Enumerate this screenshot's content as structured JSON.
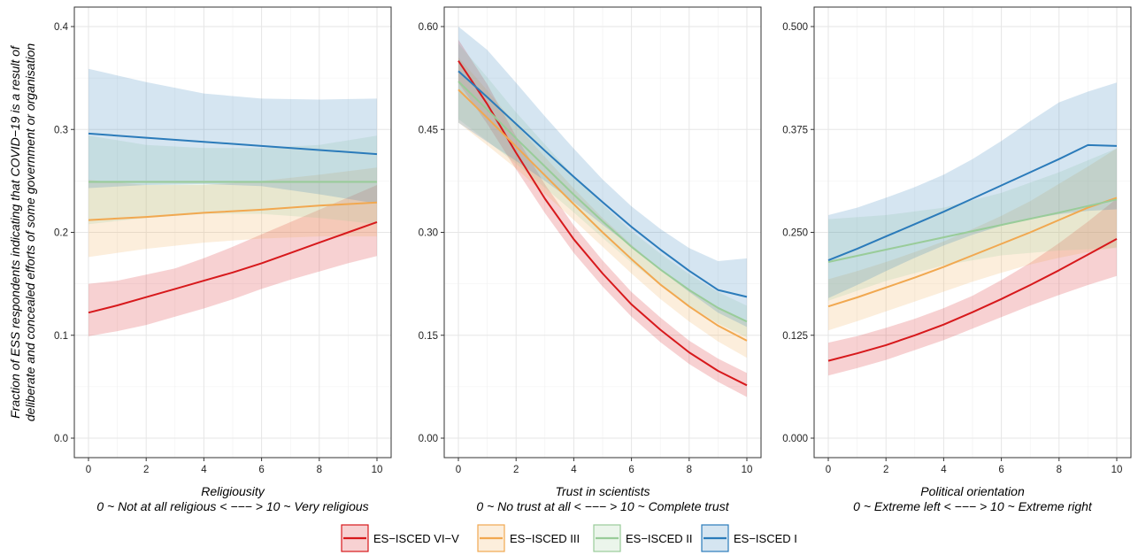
{
  "chart_data": {
    "type": "line",
    "ylabel": [
      "Fraction of ESS respondents indicating that COVID−19 is a result of",
      "deliberate and concealed efforts of some government or organisation"
    ],
    "legend": {
      "placement": "bottom"
    },
    "series_styles": [
      {
        "name": "ES−ISCED VI−V",
        "color": "#d7191c"
      },
      {
        "name": "ES−ISCED III",
        "color": "#f1a850"
      },
      {
        "name": "ES−ISCED II",
        "color": "#99cc99"
      },
      {
        "name": "ES−ISCED I",
        "color": "#2b7bba"
      }
    ],
    "panels": [
      {
        "xlabel": [
          "Religiousity",
          "0 ~ Not at all religious < −−− > 10 ~ Very religious"
        ],
        "xlim": [
          0,
          10
        ],
        "xticks": [
          0,
          2,
          4,
          6,
          8,
          10
        ],
        "ylim": [
          0,
          0.4
        ],
        "yticks": [
          0.0,
          0.1,
          0.2,
          0.3,
          0.4
        ],
        "ytick_labels": [
          "0.0",
          "0.1",
          "0.2",
          "0.3",
          "0.4"
        ],
        "series": [
          {
            "name": "ES−ISCED VI−V",
            "x": [
              0,
              1,
              2,
              3,
              4,
              5,
              6,
              7,
              8,
              9,
              10
            ],
            "y": [
              0.122,
              0.129,
              0.137,
              0.145,
              0.153,
              0.161,
              0.17,
              0.18,
              0.19,
              0.2,
              0.21
            ],
            "lower": [
              0.099,
              0.104,
              0.11,
              0.118,
              0.126,
              0.135,
              0.145,
              0.154,
              0.162,
              0.17,
              0.177
            ],
            "upper": [
              0.15,
              0.153,
              0.159,
              0.165,
              0.175,
              0.186,
              0.198,
              0.21,
              0.222,
              0.234,
              0.246
            ]
          },
          {
            "name": "ES−ISCED III",
            "x": [
              0,
              2,
              4,
              6,
              8,
              10
            ],
            "y": [
              0.212,
              0.215,
              0.219,
              0.222,
              0.226,
              0.229
            ],
            "lower": [
              0.176,
              0.184,
              0.19,
              0.194,
              0.196,
              0.196
            ],
            "upper": [
              0.251,
              0.246,
              0.246,
              0.25,
              0.256,
              0.263
            ]
          },
          {
            "name": "ES−ISCED II",
            "x": [
              0,
              2,
              4,
              6,
              8,
              10
            ],
            "y": [
              0.249,
              0.249,
              0.249,
              0.249,
              0.249,
              0.249
            ],
            "lower": [
              0.208,
              0.214,
              0.218,
              0.218,
              0.214,
              0.208
            ],
            "upper": [
              0.294,
              0.285,
              0.282,
              0.282,
              0.285,
              0.294
            ]
          },
          {
            "name": "ES−ISCED I",
            "x": [
              0,
              2,
              4,
              6,
              8,
              10
            ],
            "y": [
              0.296,
              0.292,
              0.288,
              0.284,
              0.28,
              0.276
            ],
            "lower": [
              0.243,
              0.246,
              0.247,
              0.245,
              0.237,
              0.228
            ],
            "upper": [
              0.359,
              0.346,
              0.335,
              0.33,
              0.329,
              0.33
            ]
          }
        ]
      },
      {
        "xlabel": [
          "Trust in scientists",
          "0 ~ No trust at all < −−− > 10 ~ Complete trust"
        ],
        "xlim": [
          0,
          10
        ],
        "xticks": [
          0,
          2,
          4,
          6,
          8,
          10
        ],
        "ylim": [
          0,
          0.6
        ],
        "yticks": [
          0.0,
          0.15,
          0.3,
          0.45,
          0.6
        ],
        "ytick_labels": [
          "0.00",
          "0.15",
          "0.30",
          "0.45",
          "0.60"
        ],
        "series": [
          {
            "name": "ES−ISCED VI−V",
            "x": [
              0,
              1,
              2,
              3,
              4,
              5,
              6,
              7,
              8,
              9,
              10
            ],
            "y": [
              0.55,
              0.487,
              0.416,
              0.349,
              0.29,
              0.24,
              0.195,
              0.158,
              0.125,
              0.098,
              0.077
            ],
            "lower": [
              0.518,
              0.458,
              0.392,
              0.328,
              0.27,
              0.221,
              0.177,
              0.14,
              0.108,
              0.082,
              0.06
            ],
            "upper": [
              0.581,
              0.516,
              0.44,
              0.37,
              0.31,
              0.259,
              0.213,
              0.176,
              0.142,
              0.116,
              0.095
            ]
          },
          {
            "name": "ES−ISCED III",
            "x": [
              0,
              1,
              2,
              3,
              4,
              5,
              6,
              7,
              8,
              9,
              10
            ],
            "y": [
              0.508,
              0.467,
              0.425,
              0.383,
              0.341,
              0.3,
              0.261,
              0.224,
              0.192,
              0.164,
              0.142
            ],
            "lower": [
              0.46,
              0.427,
              0.393,
              0.356,
              0.318,
              0.279,
              0.24,
              0.203,
              0.17,
              0.141,
              0.117
            ],
            "upper": [
              0.555,
              0.507,
              0.457,
              0.41,
              0.364,
              0.321,
              0.282,
              0.246,
              0.215,
              0.189,
              0.168
            ]
          },
          {
            "name": "ES−ISCED II",
            "x": [
              0,
              1,
              2,
              3,
              4,
              5,
              6,
              7,
              8,
              9,
              10
            ],
            "y": [
              0.52,
              0.479,
              0.437,
              0.396,
              0.355,
              0.316,
              0.279,
              0.246,
              0.216,
              0.19,
              0.17
            ],
            "lower": [
              0.465,
              0.433,
              0.4,
              0.365,
              0.329,
              0.292,
              0.256,
              0.223,
              0.193,
              0.167,
              0.147
            ],
            "upper": [
              0.575,
              0.526,
              0.475,
              0.428,
              0.382,
              0.341,
              0.302,
              0.269,
              0.239,
              0.213,
              0.193
            ]
          },
          {
            "name": "ES−ISCED I",
            "x": [
              0,
              1,
              2,
              3,
              4,
              5,
              6,
              7,
              8,
              9,
              10
            ],
            "y": [
              0.535,
              0.497,
              0.458,
              0.419,
              0.381,
              0.344,
              0.308,
              0.275,
              0.244,
              0.216,
              0.206
            ],
            "lower": [
              0.46,
              0.432,
              0.404,
              0.375,
              0.344,
              0.311,
              0.279,
              0.245,
              0.213,
              0.183,
              0.162
            ],
            "upper": [
              0.6,
              0.566,
              0.518,
              0.469,
              0.422,
              0.377,
              0.338,
              0.305,
              0.277,
              0.258,
              0.262
            ]
          }
        ]
      },
      {
        "xlabel": [
          "Political orientation",
          "0 ~ Extreme left < −−− > 10 ~ Extreme right"
        ],
        "xlim": [
          0,
          10
        ],
        "xticks": [
          0,
          2,
          4,
          6,
          8,
          10
        ],
        "ylim": [
          0,
          0.5
        ],
        "yticks": [
          0.0,
          0.125,
          0.25,
          0.375,
          0.5
        ],
        "ytick_labels": [
          "0.000",
          "0.125",
          "0.250",
          "0.375",
          "0.500"
        ],
        "series": [
          {
            "name": "ES−ISCED VI−V",
            "x": [
              0,
              1,
              2,
              3,
              4,
              5,
              6,
              7,
              8,
              9,
              10
            ],
            "y": [
              0.094,
              0.103,
              0.113,
              0.125,
              0.138,
              0.153,
              0.169,
              0.186,
              0.204,
              0.223,
              0.242
            ],
            "lower": [
              0.076,
              0.085,
              0.095,
              0.107,
              0.119,
              0.133,
              0.147,
              0.161,
              0.174,
              0.186,
              0.197
            ],
            "upper": [
              0.116,
              0.124,
              0.134,
              0.145,
              0.158,
              0.173,
              0.192,
              0.213,
              0.237,
              0.263,
              0.291
            ]
          },
          {
            "name": "ES−ISCED III",
            "x": [
              0,
              1,
              2,
              3,
              4,
              5,
              6,
              7,
              8,
              9,
              10
            ],
            "y": [
              0.16,
              0.171,
              0.183,
              0.195,
              0.208,
              0.222,
              0.236,
              0.25,
              0.265,
              0.28,
              0.292
            ],
            "lower": [
              0.131,
              0.142,
              0.154,
              0.166,
              0.178,
              0.19,
              0.201,
              0.211,
              0.219,
              0.226,
              0.232
            ],
            "upper": [
              0.193,
              0.203,
              0.214,
              0.226,
              0.239,
              0.254,
              0.27,
              0.288,
              0.309,
              0.33,
              0.352
            ]
          },
          {
            "name": "ES−ISCED II",
            "x": [
              0,
              2,
              4,
              6,
              8,
              10
            ],
            "y": [
              0.214,
              0.229,
              0.244,
              0.259,
              0.274,
              0.29
            ],
            "lower": [
              0.167,
              0.191,
              0.21,
              0.222,
              0.228,
              0.231
            ],
            "upper": [
              0.266,
              0.271,
              0.28,
              0.298,
              0.323,
              0.352
            ]
          },
          {
            "name": "ES−ISCED I",
            "x": [
              0,
              1,
              2,
              3,
              4,
              5,
              6,
              7,
              8,
              9,
              10
            ],
            "y": [
              0.216,
              0.23,
              0.245,
              0.26,
              0.275,
              0.291,
              0.307,
              0.323,
              0.339,
              0.356,
              0.355
            ],
            "lower": [
              0.17,
              0.186,
              0.203,
              0.219,
              0.234,
              0.247,
              0.258,
              0.266,
              0.272,
              0.276,
              0.278
            ],
            "upper": [
              0.271,
              0.28,
              0.292,
              0.305,
              0.32,
              0.339,
              0.361,
              0.385,
              0.408,
              0.421,
              0.432
            ]
          }
        ]
      }
    ]
  }
}
